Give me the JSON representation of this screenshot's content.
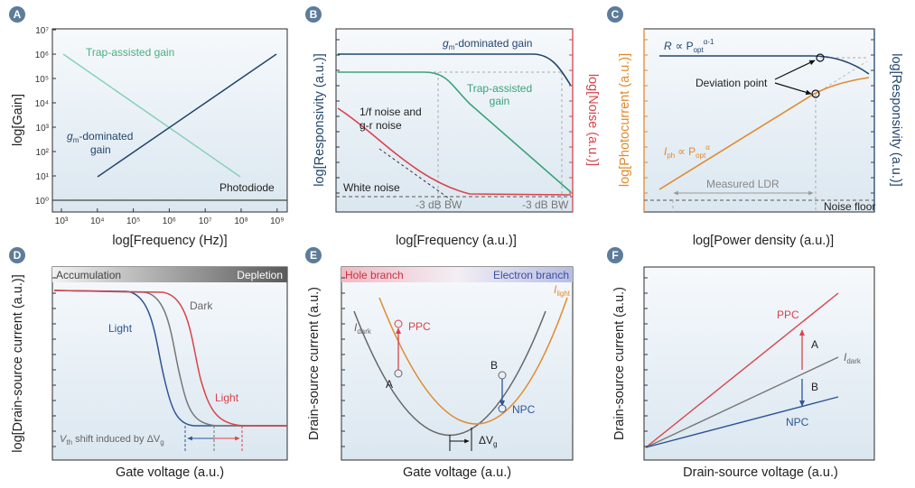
{
  "panels": [
    {
      "label": "A",
      "y_axis": "log[Gain]",
      "x_axis": "log[Frequency (Hz)]",
      "yticks": [
        "10⁰",
        "10¹",
        "10²",
        "10³",
        "10⁴",
        "10⁵",
        "10⁶",
        "10⁷"
      ],
      "xticks": [
        "10³",
        "10⁴",
        "10⁵",
        "10⁶",
        "10⁷",
        "10⁸",
        "10⁹"
      ],
      "trap": "Trap-assisted gain",
      "gm": [
        "g",
        "m",
        "-dominated",
        "gain"
      ],
      "photodiode": "Photodiode"
    },
    {
      "label": "B",
      "y_axis": "log[Responsivity (a.u.)]",
      "y2_axis": "log[Noise (a.u.)]",
      "x_axis": "log[Frequency (a.u.)]",
      "gm": [
        "g",
        "m",
        "-dominated gain"
      ],
      "trap": [
        "Trap-assisted",
        "gain"
      ],
      "noise": [
        "1/f noise and",
        "g-r noise"
      ],
      "white": "White noise",
      "bw": [
        "-3 dB BW",
        "-3 dB BW"
      ]
    },
    {
      "label": "C",
      "y_axis": "log[Photocurrent (a.u.)]",
      "y2_axis": "log[Responsivity (a.u.)]",
      "x_axis": "log[Power density (a.u.)]",
      "r": [
        "R",
        "∝ P",
        "opt",
        "α-1"
      ],
      "deviation": "Deviation point",
      "iph": [
        "I",
        "ph",
        "∝ P",
        "opt",
        "α"
      ],
      "ldr": "Measured LDR",
      "floor": "Noise floor"
    },
    {
      "label": "D",
      "y_axis": "log[Drain-source current (a.u.)]",
      "x_axis": "Gate voltage (a.u.)",
      "bar": [
        "Accumulation",
        "Depletion"
      ],
      "light1": "Light",
      "dark": "Dark",
      "light2": "Light",
      "shift": [
        "V",
        "th",
        " shift induced by ΔV",
        "g"
      ]
    },
    {
      "label": "E",
      "y_axis": "Drain-source current (a.u.)",
      "x_axis": "Gate voltage (a.u.)",
      "bar": [
        "Hole branch",
        "Electron branch"
      ],
      "idark": [
        "I",
        "dark"
      ],
      "ilight": [
        "I",
        "light"
      ],
      "ppc": "PPC",
      "a": "A",
      "b": "B",
      "npc": "NPC",
      "dv": [
        "ΔV",
        "g"
      ]
    },
    {
      "label": "F",
      "y_axis": "Drain-source current (a.u.)",
      "x_axis": "Drain-source voltage (a.u.)",
      "ppc": "PPC",
      "a": "A",
      "idark": [
        "I",
        "dark"
      ],
      "b": "B",
      "npc": "NPC"
    }
  ]
}
